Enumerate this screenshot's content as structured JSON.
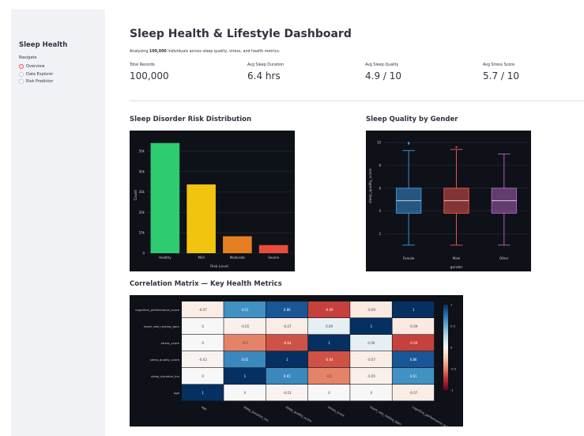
{
  "sidebar": {
    "title": "Sleep Health",
    "nav_label": "Navigate",
    "items": [
      {
        "label": "Overview",
        "selected": true
      },
      {
        "label": "Data Explorer",
        "selected": false
      },
      {
        "label": "Risk Predictor",
        "selected": false
      }
    ]
  },
  "header": {
    "title": "Sleep Health & Lifestyle Dashboard",
    "subtitle_prefix": "Analyzing ",
    "subtitle_bold": "100,000",
    "subtitle_suffix": " individuals across sleep quality, stress, and health metrics."
  },
  "metrics": [
    {
      "label": "Total Records",
      "value": "100,000"
    },
    {
      "label": "Avg Sleep Duration",
      "value": "6.4 hrs"
    },
    {
      "label": "Avg Sleep Quality",
      "value": "4.9 / 10"
    },
    {
      "label": "Avg Stress Score",
      "value": "5.7 / 10"
    }
  ],
  "sections": {
    "risk": "Sleep Disorder Risk Distribution",
    "gender": "Sleep Quality by Gender",
    "corr": "Correlation Matrix — Key Health Metrics"
  },
  "chart_data": [
    {
      "id": "risk",
      "type": "bar",
      "xlabel": "Risk Level",
      "ylabel": "Count",
      "categories": [
        "Healthy",
        "Mild",
        "Moderate",
        "Severe"
      ],
      "values": [
        54000,
        33700,
        8300,
        4000
      ],
      "colors": [
        "#2ecc71",
        "#f1c40f",
        "#e67e22",
        "#e74c3c"
      ],
      "yticks": [
        0,
        10000,
        20000,
        30000,
        40000,
        50000
      ],
      "ytick_labels": [
        "0",
        "10k",
        "20k",
        "30k",
        "40k",
        "50k"
      ],
      "ylim": [
        0,
        57000
      ]
    },
    {
      "id": "gender",
      "type": "box",
      "xlabel": "gender",
      "ylabel": "sleep_quality_score",
      "categories": [
        "Female",
        "Male",
        "Other"
      ],
      "boxes": [
        {
          "min": 1,
          "q1": 3.8,
          "median": 4.9,
          "q3": 6.0,
          "max": 9.3,
          "outliers": [
            9.9,
            10
          ],
          "color": "#3a8fd6"
        },
        {
          "min": 1,
          "q1": 3.8,
          "median": 4.9,
          "q3": 6.0,
          "max": 9.4,
          "outliers": [
            9.6
          ],
          "color": "#e0524f"
        },
        {
          "min": 1,
          "q1": 3.8,
          "median": 4.9,
          "q3": 6.0,
          "max": 9.0,
          "outliers": [],
          "color": "#a660b8"
        }
      ],
      "yticks": [
        2,
        4,
        6,
        8,
        10
      ],
      "ylim": [
        0.5,
        10.5
      ]
    },
    {
      "id": "corr",
      "type": "heatmap",
      "rows": [
        "cognitive_performance_score",
        "heart_rate_resting_bpm",
        "stress_score",
        "sleep_quality_score",
        "sleep_duration_hrs",
        "age"
      ],
      "cols": [
        "age",
        "sleep_duration_hrs",
        "sleep_quality_score",
        "stress_score",
        "heart_rate_resting_bpm",
        "cognitive_performance_score"
      ],
      "values": [
        [
          -0.07,
          0.61,
          0.86,
          -0.69,
          -0.09,
          1
        ],
        [
          0,
          -0.05,
          -0.07,
          0.09,
          1,
          -0.09
        ],
        [
          0,
          -0.5,
          -0.64,
          1,
          0.09,
          -0.69
        ],
        [
          -0.03,
          0.65,
          1,
          -0.64,
          -0.07,
          0.86
        ],
        [
          0,
          1,
          0.65,
          -0.5,
          -0.05,
          0.61
        ],
        [
          1,
          0,
          -0.03,
          0,
          0,
          -0.07
        ]
      ],
      "labels": [
        [
          "-0.07",
          "0.61",
          "0.86",
          "-0.69",
          "-0.09",
          "1"
        ],
        [
          "0",
          "-0.05",
          "-0.07",
          "0.09",
          "1",
          "-0.09"
        ],
        [
          "0",
          "-0.5",
          "-0.64",
          "1",
          "0.09",
          "-0.69"
        ],
        [
          "-0.03",
          "0.65",
          "1",
          "-0.64",
          "-0.07",
          "0.86"
        ],
        [
          "0",
          "1",
          "0.65",
          "-0.5",
          "-0.05",
          "0.61"
        ],
        [
          "1",
          "0",
          "-0.03",
          "0",
          "0",
          "-0.07"
        ]
      ],
      "colorbar_ticks": [
        1,
        0.5,
        0,
        -0.5,
        -1
      ],
      "colorbar_labels": [
        "1",
        "0.5",
        "0",
        "-0.5",
        "-1"
      ]
    }
  ]
}
